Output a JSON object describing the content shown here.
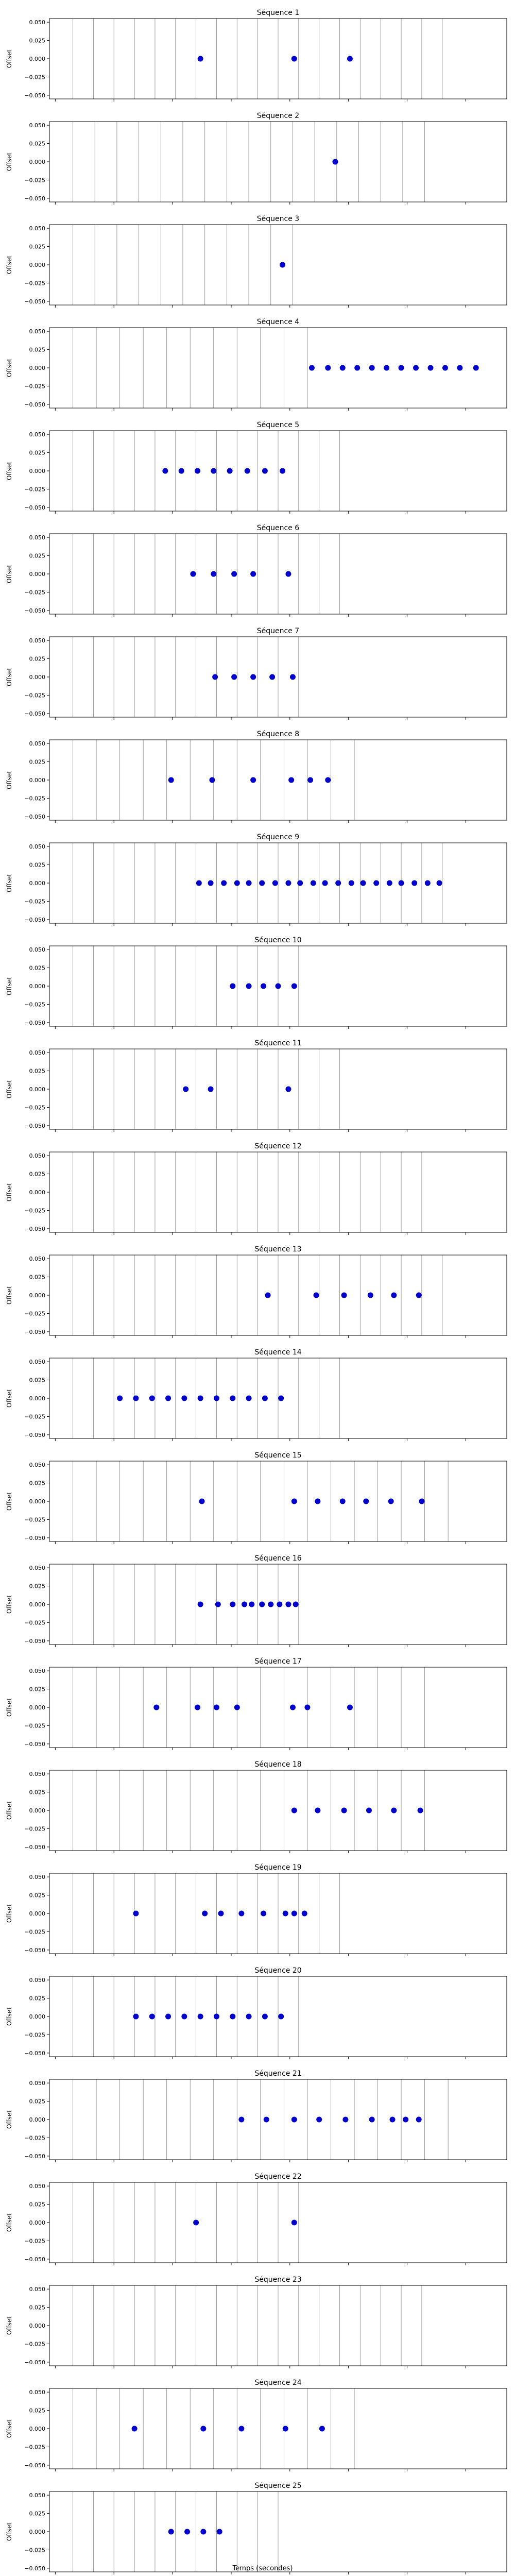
{
  "chart_data": {
    "type": "scatter",
    "xlabel": "Temps (secondes)",
    "ylabel": "Offset",
    "xlim": [
      -0.2,
      15.4
    ],
    "ylim": [
      -0.055,
      0.055
    ],
    "xticks": [
      0,
      2,
      4,
      6,
      8,
      10,
      12,
      14
    ],
    "yticks": [
      0.05,
      0.025,
      0.0,
      -0.025,
      -0.05
    ],
    "ytick_labels": [
      "0.050",
      "0.025",
      "0.000",
      "−0.025",
      "−0.050"
    ],
    "marker_color": "#0000cc",
    "line_color": "#808080",
    "panels": [
      {
        "title": "Séquence 1",
        "lines": [
          0.6,
          1.3,
          2.0,
          2.7,
          3.4,
          4.1,
          4.8,
          5.5,
          6.2,
          6.9,
          7.6,
          8.3,
          9.0,
          9.7,
          10.4,
          11.1,
          11.8,
          12.5,
          13.2
        ],
        "points": [
          4.95,
          8.15,
          10.05
        ]
      },
      {
        "title": "Séquence 2",
        "lines": [
          0.6,
          1.35,
          2.1,
          2.85,
          3.6,
          4.35,
          5.1,
          5.85,
          6.6,
          7.35,
          8.1,
          8.85,
          9.6,
          10.35,
          11.1,
          11.85,
          12.6
        ],
        "points": [
          9.55
        ]
      },
      {
        "title": "Séquence 3",
        "lines": [
          0.6,
          1.35,
          2.1,
          2.85,
          3.6,
          4.35,
          5.1,
          5.85,
          6.6,
          7.35,
          8.1
        ],
        "points": [
          7.75
        ]
      },
      {
        "title": "Séquence 4",
        "lines": [
          0.6,
          1.4,
          2.2,
          3.0,
          3.8,
          4.6,
          5.4,
          6.2,
          7.0,
          7.8,
          8.6
        ],
        "points": [
          8.75,
          9.3,
          9.8,
          10.3,
          10.8,
          11.3,
          11.8,
          12.3,
          12.8,
          13.3,
          13.8,
          14.35
        ]
      },
      {
        "title": "Séquence 5",
        "lines": [
          0.6,
          1.3,
          2.0,
          2.7,
          3.4,
          4.1,
          4.8,
          5.5,
          6.2,
          6.9,
          7.6,
          8.3,
          9.0,
          9.7
        ],
        "points": [
          3.75,
          4.3,
          4.85,
          5.4,
          5.95,
          6.55,
          7.15,
          7.75
        ]
      },
      {
        "title": "Séquence 6",
        "lines": [
          0.6,
          1.3,
          2.0,
          2.7,
          3.4,
          4.1,
          4.8,
          5.5,
          6.2,
          6.9,
          7.6,
          8.3,
          9.0,
          9.7
        ],
        "points": [
          4.7,
          5.4,
          6.1,
          6.75,
          7.95
        ]
      },
      {
        "title": "Séquence 7",
        "lines": [
          0.6,
          1.3,
          2.0,
          2.7,
          3.4,
          4.1,
          4.8,
          5.5,
          6.2,
          6.9,
          7.6,
          8.3
        ],
        "points": [
          5.45,
          6.1,
          6.75,
          7.4,
          8.1
        ]
      },
      {
        "title": "Séquence 8",
        "lines": [
          0.6,
          1.4,
          2.2,
          3.0,
          3.8,
          4.6,
          5.4,
          6.2,
          7.0,
          7.8,
          8.6,
          9.4,
          10.2
        ],
        "points": [
          3.95,
          5.35,
          6.75,
          8.05,
          8.7,
          9.3
        ]
      },
      {
        "title": "Séquence 9",
        "lines": [
          0.6,
          1.3,
          2.0,
          2.7,
          3.4,
          4.1,
          4.8,
          5.5,
          6.2,
          6.9,
          7.6,
          8.3,
          9.0,
          9.7,
          10.4,
          11.1,
          11.8,
          12.5,
          13.2
        ],
        "points": [
          4.9,
          5.3,
          5.75,
          6.2,
          6.6,
          7.05,
          7.5,
          7.95,
          8.35,
          8.8,
          9.2,
          9.65,
          10.1,
          10.5,
          10.95,
          11.4,
          11.8,
          12.25,
          12.7,
          13.1
        ]
      },
      {
        "title": "Séquence 10",
        "lines": [
          0.6,
          1.3,
          2.0,
          2.7,
          3.4,
          4.1,
          4.8,
          5.5,
          6.2,
          6.9,
          7.6,
          8.3
        ],
        "points": [
          6.05,
          6.6,
          7.1,
          7.6,
          8.15
        ]
      },
      {
        "title": "Séquence 11",
        "lines": [
          0.6,
          1.3,
          2.0,
          2.7,
          3.4,
          4.1,
          4.8,
          5.5,
          6.2,
          6.9,
          7.6,
          8.3,
          9.0,
          9.7
        ],
        "points": [
          4.45,
          5.3,
          7.95
        ]
      },
      {
        "title": "Séquence 12",
        "lines": [
          0.6,
          1.3,
          2.0,
          2.7,
          3.4,
          4.1,
          4.8,
          5.5,
          6.2,
          6.9,
          7.6,
          8.3,
          9.0,
          9.7,
          10.4,
          11.1,
          11.8,
          12.5
        ],
        "points": []
      },
      {
        "title": "Séquence 13",
        "lines": [
          0.6,
          1.3,
          2.0,
          2.7,
          3.4,
          4.1,
          4.8,
          5.5,
          6.2,
          6.9,
          7.6,
          8.3,
          9.0,
          9.7,
          10.4,
          11.1,
          11.8,
          12.5,
          13.2
        ],
        "points": [
          7.25,
          8.9,
          9.85,
          10.75,
          11.55,
          12.4
        ]
      },
      {
        "title": "Séquence 14",
        "lines": [
          0.6,
          1.3,
          2.0,
          2.7,
          3.4,
          4.1,
          4.8,
          5.5,
          6.2,
          6.9,
          7.6,
          8.3,
          9.0,
          9.7
        ],
        "points": [
          2.2,
          2.75,
          3.3,
          3.85,
          4.4,
          4.95,
          5.5,
          6.05,
          6.6,
          7.15,
          7.7
        ]
      },
      {
        "title": "Séquence 15",
        "lines": [
          0.6,
          1.4,
          2.2,
          3.0,
          3.8,
          4.6,
          5.4,
          6.2,
          7.0,
          7.8,
          8.6,
          9.4,
          10.2,
          11.0,
          11.8,
          12.6,
          13.4
        ],
        "points": [
          5.0,
          8.15,
          8.95,
          9.8,
          10.6,
          11.45,
          12.5
        ]
      },
      {
        "title": "Séquence 16",
        "lines": [
          0.6,
          1.3,
          2.0,
          2.7,
          3.4,
          4.1,
          4.8,
          5.5,
          6.2,
          6.9,
          7.6,
          8.3
        ],
        "points": [
          4.95,
          5.55,
          6.05,
          6.45,
          6.7,
          7.05,
          7.35,
          7.65,
          7.95,
          8.2
        ]
      },
      {
        "title": "Séquence 17",
        "lines": [
          0.6,
          1.4,
          2.2,
          3.0,
          3.8,
          4.6,
          5.4,
          6.2,
          7.0,
          7.8,
          8.6,
          9.4,
          10.2,
          11.0,
          11.8,
          12.6
        ],
        "points": [
          3.45,
          4.85,
          5.5,
          6.2,
          8.1,
          8.6,
          10.05
        ]
      },
      {
        "title": "Séquence 18",
        "lines": [
          0.6,
          1.4,
          2.2,
          3.0,
          3.8,
          4.6,
          5.4,
          6.2,
          7.0,
          7.8,
          8.6,
          9.4,
          10.2,
          11.0,
          11.8,
          12.6
        ],
        "points": [
          8.15,
          8.95,
          9.85,
          10.7,
          11.55,
          12.45
        ]
      },
      {
        "title": "Séquence 19",
        "lines": [
          0.6,
          1.3,
          2.0,
          2.7,
          3.4,
          4.1,
          4.8,
          5.5,
          6.2,
          6.9,
          7.6,
          8.3,
          9.0,
          9.7
        ],
        "points": [
          2.75,
          5.1,
          5.65,
          6.35,
          7.1,
          7.85,
          8.15,
          8.5
        ]
      },
      {
        "title": "Séquence 20",
        "lines": [
          0.6,
          1.3,
          2.0,
          2.7,
          3.4,
          4.1,
          4.8,
          5.5,
          6.2,
          6.9,
          7.6,
          8.3
        ],
        "points": [
          2.75,
          3.3,
          3.85,
          4.4,
          4.95,
          5.5,
          6.05,
          6.6,
          7.15,
          7.7
        ]
      },
      {
        "title": "Séquence 21",
        "lines": [
          0.6,
          1.4,
          2.2,
          3.0,
          3.8,
          4.6,
          5.4,
          6.2,
          7.0,
          7.8,
          8.6,
          9.4,
          10.2,
          11.0,
          11.8,
          12.6,
          13.4
        ],
        "points": [
          6.35,
          7.2,
          8.15,
          9.0,
          9.9,
          10.8,
          11.5,
          11.95,
          12.4
        ]
      },
      {
        "title": "Séquence 22",
        "lines": [
          0.6,
          1.3,
          2.0,
          2.7,
          3.4,
          4.1,
          4.8,
          5.5,
          6.2,
          6.9,
          7.6,
          8.3
        ],
        "points": [
          4.8,
          8.15
        ]
      },
      {
        "title": "Séquence 23",
        "lines": [
          0.6,
          1.3,
          2.0,
          2.7,
          3.4,
          4.1,
          4.8,
          5.5,
          6.2,
          6.9,
          7.6,
          8.3,
          9.0,
          9.7,
          10.4,
          11.1,
          11.8,
          12.5
        ],
        "points": []
      },
      {
        "title": "Séquence 24",
        "lines": [
          0.6,
          1.4,
          2.2,
          3.0,
          3.8,
          4.6,
          5.4,
          6.2,
          7.0,
          7.8,
          8.6,
          9.4,
          10.2
        ],
        "points": [
          2.7,
          5.05,
          6.35,
          7.85,
          9.1
        ]
      },
      {
        "title": "Séquence 25",
        "lines": [
          0.6,
          1.3,
          2.0,
          2.7,
          3.4,
          4.1,
          4.8,
          5.5,
          6.2,
          6.9,
          7.6
        ],
        "points": [
          3.95,
          4.5,
          5.05,
          5.6
        ]
      }
    ]
  }
}
